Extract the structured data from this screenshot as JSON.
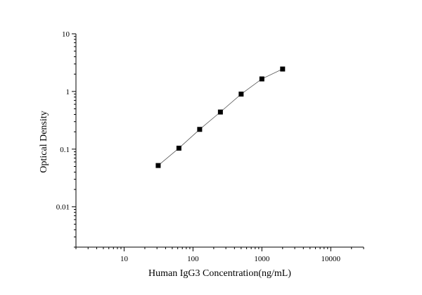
{
  "chart_data": {
    "type": "scatter",
    "title": "",
    "xlabel": "Human IgG3 Concentration(ng/mL)",
    "ylabel": "Optical Density",
    "x_scale": "log",
    "y_scale": "log",
    "xlim": [
      2,
      30000
    ],
    "ylim": [
      0.002,
      10
    ],
    "x_ticks": [
      "10",
      "100",
      "1000",
      "10000"
    ],
    "y_ticks": [
      "0.01",
      "0.1",
      "1",
      "10"
    ],
    "grid": false,
    "legend": "none",
    "marker_color": "#000000",
    "line_color": "#555555",
    "series": [
      {
        "x": [
          31.25,
          62.5,
          125,
          250,
          500,
          1000,
          2000
        ],
        "y": [
          0.052,
          0.104,
          0.22,
          0.44,
          0.9,
          1.65,
          2.45
        ]
      }
    ]
  }
}
